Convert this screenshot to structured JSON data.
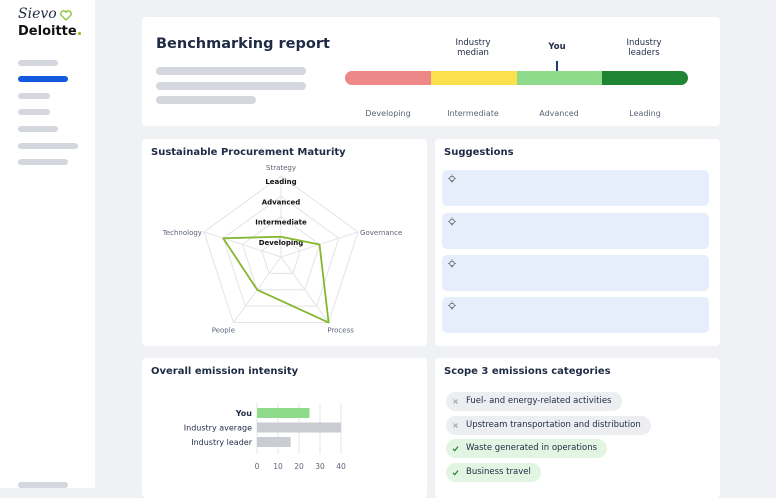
{
  "sidebar": {
    "brand": "Sievo",
    "partner": "Deloitte"
  },
  "benchmark": {
    "title": "Benchmarking report",
    "markers": [
      "Industry median",
      "You",
      "Industry leaders"
    ],
    "levels": [
      "Developing",
      "Intermediate",
      "Advanced",
      "Leading"
    ]
  },
  "maturity": {
    "title": "Sustainable Procurement Maturity",
    "chart": {
      "type": "radar",
      "axes": [
        "Strategy",
        "Governance",
        "Process",
        "People",
        "Technology"
      ],
      "values": [
        1,
        2,
        4,
        2,
        3
      ],
      "rlim": [
        0,
        4
      ],
      "rticks": [
        {
          "value": 1,
          "label": "Developing"
        },
        {
          "value": 2,
          "label": "Intermediate"
        },
        {
          "value": 3,
          "label": "Advanced"
        },
        {
          "value": 4,
          "label": "Leading"
        }
      ],
      "color": "#84b82e"
    }
  },
  "suggestions": {
    "title": "Suggestions"
  },
  "emissions": {
    "title": "Overall emission intensity",
    "chart": {
      "type": "bar",
      "categories": [
        "You",
        "Industry average",
        "Industry leader"
      ],
      "values": [
        25,
        40,
        16
      ],
      "colors": [
        "#8edb8c",
        "#c9ccd3",
        "#c9ccd3"
      ],
      "xlim": [
        0,
        40
      ],
      "xticks": [
        0,
        10,
        20,
        30,
        40
      ],
      "grid": true
    }
  },
  "scope3": {
    "title": "Scope 3 emissions categories",
    "categories": [
      {
        "label": "Fuel- and energy-related activities",
        "selected": false
      },
      {
        "label": "Upstream transportation and distribution",
        "selected": false
      },
      {
        "label": "Waste generated in operations",
        "selected": true
      },
      {
        "label": "Business travel",
        "selected": true
      }
    ]
  }
}
